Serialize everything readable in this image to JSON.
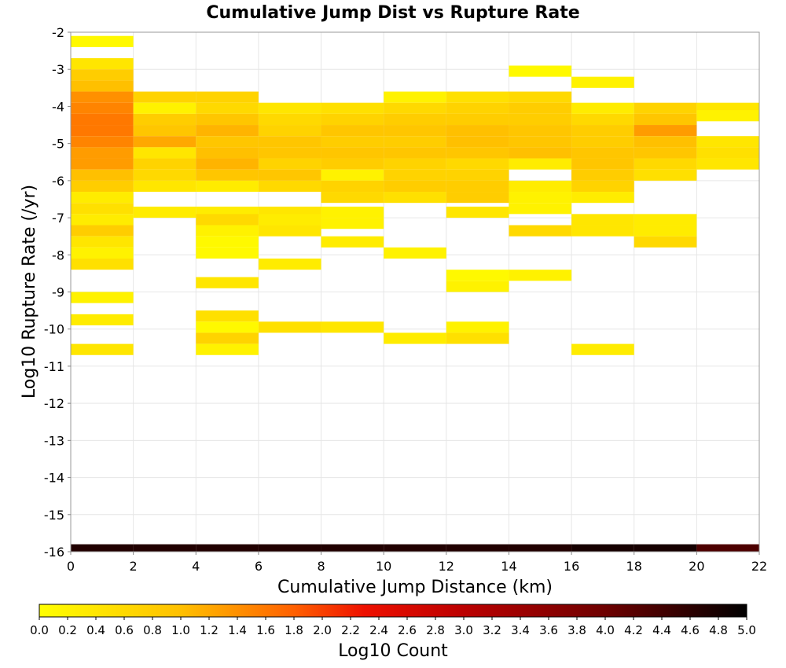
{
  "chart_data": {
    "type": "heatmap",
    "title": "Cumulative Jump Dist vs Rupture Rate",
    "xlabel": "Cumulative Jump Distance (km)",
    "ylabel": "Log10 Rupture Rate (/yr)",
    "colorbar_label": "Log10 Count",
    "xlim": [
      0,
      22
    ],
    "ylim": [
      -16,
      -2
    ],
    "x_ticks": [
      "0",
      "2",
      "4",
      "6",
      "8",
      "10",
      "12",
      "14",
      "16",
      "18",
      "20",
      "22"
    ],
    "y_ticks": [
      "-2",
      "-3",
      "-4",
      "-5",
      "-6",
      "-7",
      "-8",
      "-9",
      "-10",
      "-11",
      "-12",
      "-13",
      "-14",
      "-15",
      "-16"
    ],
    "color_range": [
      0,
      5
    ],
    "colorbar_ticks": [
      "0.0",
      "0.2",
      "0.4",
      "0.6",
      "0.8",
      "1.0",
      "1.2",
      "1.4",
      "1.6",
      "1.8",
      "2.0",
      "2.2",
      "2.4",
      "2.6",
      "2.8",
      "3.0",
      "3.2",
      "3.4",
      "3.6",
      "3.8",
      "4.0",
      "4.2",
      "4.4",
      "4.6",
      "4.8",
      "5.0"
    ],
    "grid": true,
    "x_bin_width": 2,
    "y_bin_height": 0.3,
    "cells": [
      {
        "x": 0,
        "rows": [
          [
            -2.4,
            0.1
          ],
          [
            -3.0,
            0.4
          ],
          [
            -3.3,
            0.8
          ],
          [
            -3.6,
            1.0
          ],
          [
            -3.9,
            1.4
          ],
          [
            -4.2,
            1.5
          ],
          [
            -4.5,
            1.6
          ],
          [
            -4.8,
            1.6
          ],
          [
            -5.1,
            1.5
          ],
          [
            -5.4,
            1.3
          ],
          [
            -5.7,
            1.3
          ],
          [
            -6.0,
            1.0
          ],
          [
            -6.3,
            0.8
          ],
          [
            -6.6,
            0.3
          ],
          [
            -6.9,
            0.5
          ],
          [
            -7.2,
            0.3
          ],
          [
            -7.5,
            0.8
          ],
          [
            -7.8,
            0.4
          ],
          [
            -8.1,
            0.2
          ],
          [
            -8.4,
            0.5
          ],
          [
            -9.3,
            0.2
          ],
          [
            -9.9,
            0.3
          ],
          [
            -10.7,
            0.4
          ]
        ]
      },
      {
        "x": 2,
        "rows": [
          [
            -3.9,
            0.7
          ],
          [
            -4.2,
            0.2
          ],
          [
            -4.5,
            0.8
          ],
          [
            -4.8,
            0.9
          ],
          [
            -5.1,
            1.2
          ],
          [
            -5.4,
            0.4
          ],
          [
            -5.7,
            0.7
          ],
          [
            -6.0,
            0.6
          ],
          [
            -6.3,
            0.4
          ],
          [
            -7.0,
            0.3
          ]
        ]
      },
      {
        "x": 4,
        "rows": [
          [
            -3.9,
            0.7
          ],
          [
            -4.2,
            0.6
          ],
          [
            -4.5,
            0.9
          ],
          [
            -4.8,
            1.1
          ],
          [
            -5.1,
            0.9
          ],
          [
            -5.4,
            1.0
          ],
          [
            -5.7,
            1.1
          ],
          [
            -6.0,
            0.9
          ],
          [
            -6.3,
            0.3
          ],
          [
            -7.0,
            0.3
          ],
          [
            -7.2,
            0.6
          ],
          [
            -7.5,
            0.2
          ],
          [
            -7.8,
            0.1
          ],
          [
            -8.1,
            0.1
          ],
          [
            -8.9,
            0.4
          ],
          [
            -9.8,
            0.5
          ],
          [
            -10.1,
            0.1
          ],
          [
            -10.4,
            0.7
          ],
          [
            -10.7,
            0.2
          ]
        ]
      },
      {
        "x": 6,
        "rows": [
          [
            -4.2,
            0.4
          ],
          [
            -4.5,
            0.6
          ],
          [
            -4.8,
            0.7
          ],
          [
            -5.1,
            0.9
          ],
          [
            -5.4,
            0.9
          ],
          [
            -5.7,
            0.7
          ],
          [
            -6.0,
            0.9
          ],
          [
            -6.3,
            0.6
          ],
          [
            -7.0,
            0.4
          ],
          [
            -7.2,
            0.3
          ],
          [
            -7.5,
            0.4
          ],
          [
            -8.4,
            0.3
          ],
          [
            -10.1,
            0.5
          ]
        ]
      },
      {
        "x": 8,
        "rows": [
          [
            -4.2,
            0.5
          ],
          [
            -4.5,
            0.7
          ],
          [
            -4.8,
            0.9
          ],
          [
            -5.1,
            0.8
          ],
          [
            -5.4,
            0.9
          ],
          [
            -5.7,
            0.8
          ],
          [
            -6.0,
            0.2
          ],
          [
            -6.3,
            0.7
          ],
          [
            -6.6,
            0.6
          ],
          [
            -7.0,
            0.2
          ],
          [
            -7.3,
            0.2
          ],
          [
            -7.8,
            0.3
          ],
          [
            -10.1,
            0.4
          ]
        ]
      },
      {
        "x": 10,
        "rows": [
          [
            -3.9,
            0.2
          ],
          [
            -4.2,
            0.6
          ],
          [
            -4.5,
            0.8
          ],
          [
            -4.8,
            0.9
          ],
          [
            -5.1,
            0.8
          ],
          [
            -5.4,
            0.9
          ],
          [
            -5.7,
            0.7
          ],
          [
            -6.0,
            0.7
          ],
          [
            -6.3,
            0.8
          ],
          [
            -6.6,
            0.5
          ],
          [
            -8.1,
            0.2
          ],
          [
            -10.4,
            0.3
          ]
        ]
      },
      {
        "x": 12,
        "rows": [
          [
            -3.9,
            0.5
          ],
          [
            -4.2,
            0.7
          ],
          [
            -4.5,
            0.8
          ],
          [
            -4.8,
            1.0
          ],
          [
            -5.1,
            1.0
          ],
          [
            -5.4,
            0.9
          ],
          [
            -5.7,
            0.6
          ],
          [
            -6.0,
            0.7
          ],
          [
            -6.3,
            0.8
          ],
          [
            -6.6,
            0.8
          ],
          [
            -7.0,
            0.4
          ],
          [
            -8.7,
            0.1
          ],
          [
            -9.0,
            0.2
          ],
          [
            -10.1,
            0.2
          ],
          [
            -10.4,
            0.5
          ]
        ]
      },
      {
        "x": 14,
        "rows": [
          [
            -3.2,
            0.1
          ],
          [
            -3.9,
            0.6
          ],
          [
            -4.2,
            0.8
          ],
          [
            -4.5,
            0.8
          ],
          [
            -4.8,
            0.9
          ],
          [
            -5.1,
            0.9
          ],
          [
            -5.4,
            1.0
          ],
          [
            -5.7,
            0.3
          ],
          [
            -6.3,
            0.3
          ],
          [
            -6.6,
            0.2
          ],
          [
            -6.9,
            0.2
          ],
          [
            -7.5,
            0.6
          ],
          [
            -8.7,
            0.2
          ]
        ]
      },
      {
        "x": 16,
        "rows": [
          [
            -3.5,
            0.2
          ],
          [
            -4.2,
            0.3
          ],
          [
            -4.5,
            0.6
          ],
          [
            -4.8,
            0.8
          ],
          [
            -5.1,
            0.8
          ],
          [
            -5.4,
            0.9
          ],
          [
            -5.7,
            0.9
          ],
          [
            -6.0,
            0.8
          ],
          [
            -6.3,
            0.7
          ],
          [
            -6.6,
            0.3
          ],
          [
            -7.2,
            0.4
          ],
          [
            -7.5,
            0.4
          ],
          [
            -10.7,
            0.3
          ]
        ]
      },
      {
        "x": 18,
        "rows": [
          [
            -4.2,
            0.7
          ],
          [
            -4.5,
            0.9
          ],
          [
            -4.8,
            1.3
          ],
          [
            -5.1,
            1.0
          ],
          [
            -5.4,
            0.9
          ],
          [
            -5.7,
            0.6
          ],
          [
            -6.0,
            0.5
          ],
          [
            -7.2,
            0.3
          ],
          [
            -7.5,
            0.3
          ],
          [
            -7.8,
            0.6
          ]
        ]
      },
      {
        "x": 20,
        "rows": [
          [
            -4.2,
            0.4
          ],
          [
            -4.4,
            0.2
          ],
          [
            -5.1,
            0.4
          ],
          [
            -5.4,
            0.5
          ],
          [
            -5.7,
            0.4
          ]
        ]
      }
    ],
    "bottom_row": {
      "y": -16,
      "height": 0.2,
      "values": [
        4.7,
        4.7,
        4.7,
        4.7,
        4.7,
        4.7,
        4.7,
        4.7,
        4.8,
        4.8,
        4.3
      ]
    }
  }
}
